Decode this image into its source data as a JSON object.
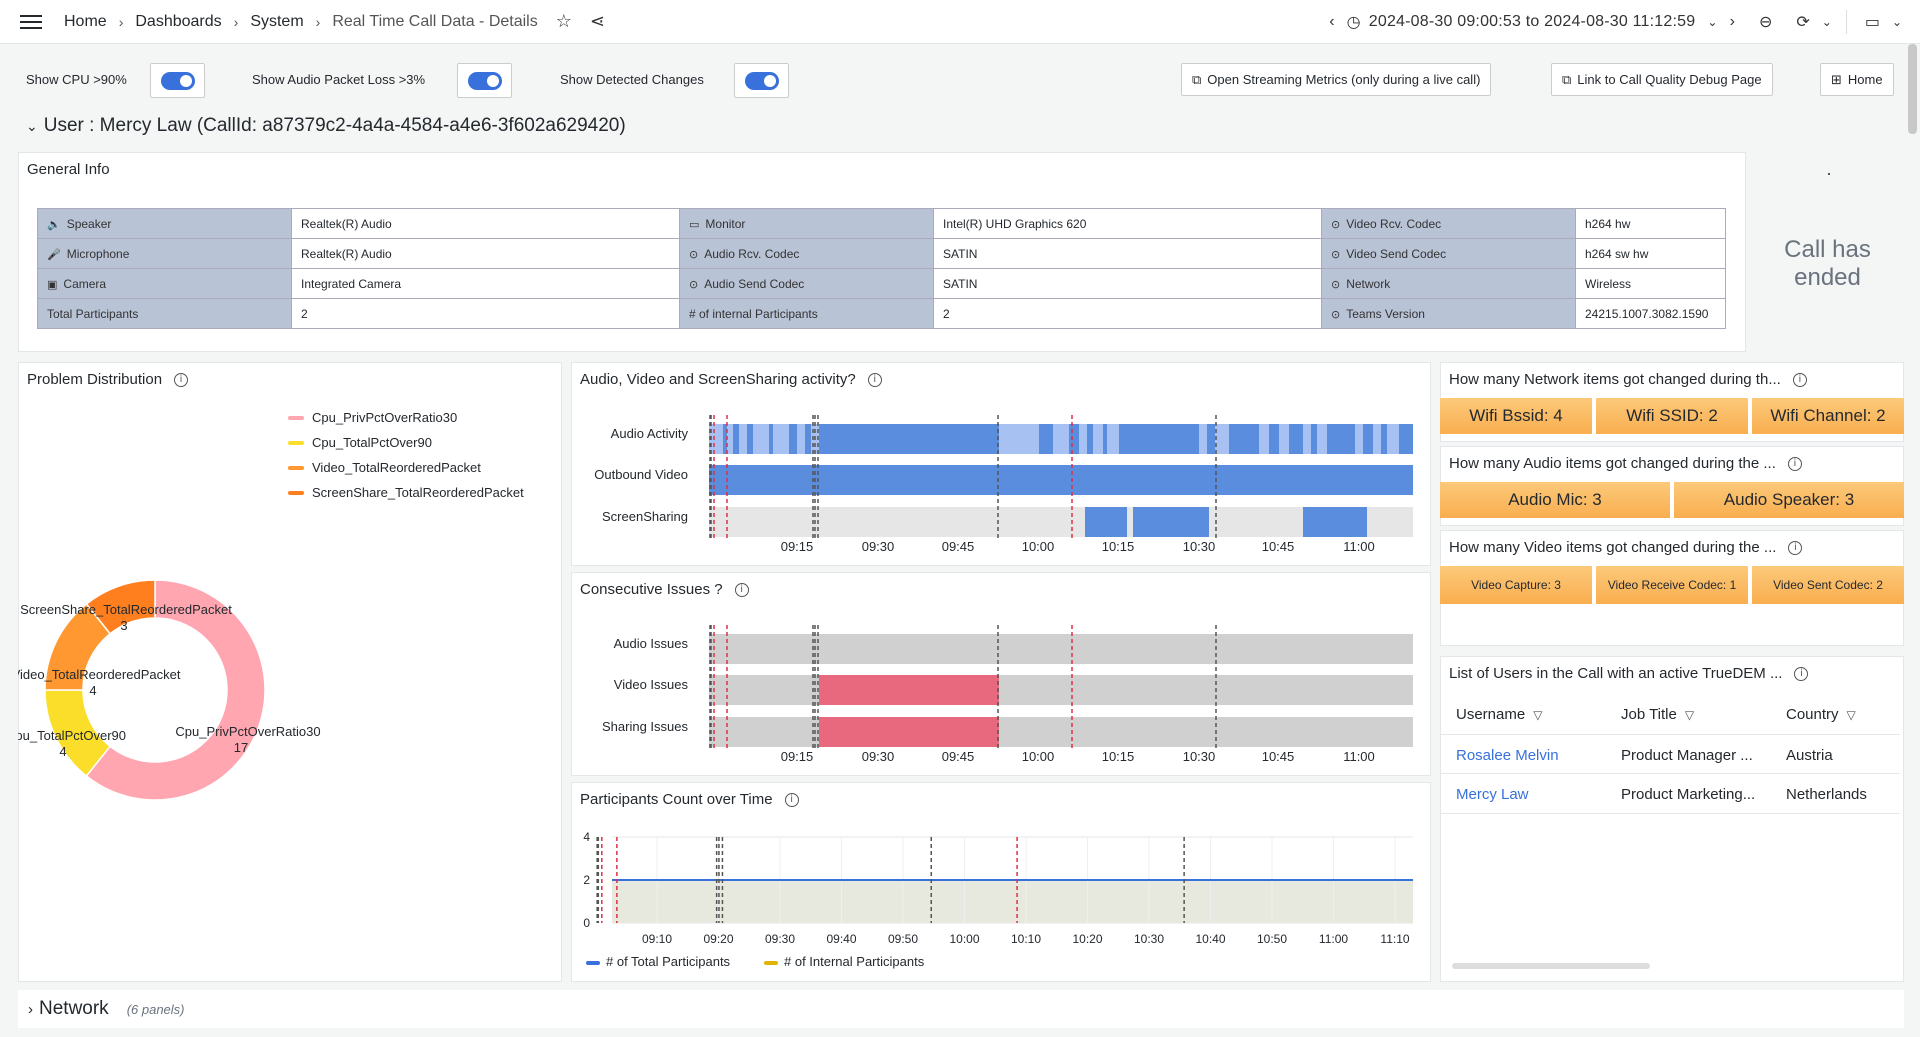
{
  "topbar": {
    "crumbs": [
      "Home",
      "Dashboards",
      "System",
      "Real Time Call Data - Details"
    ],
    "time_range": "2024-08-30 09:00:53 to 2024-08-30 11:12:59"
  },
  "variables": {
    "show_cpu": "Show CPU >90%",
    "show_audio_loss": "Show Audio Packet Loss >3%",
    "show_changes": "Show Detected Changes",
    "open_streaming": "Open Streaming Metrics (only during a live call)",
    "link_debug": "Link to Call Quality Debug Page",
    "home": "Home"
  },
  "user_row": {
    "title": "User : Mercy Law (CallId: a87379c2-4a4a-4584-a4e6-3f602a629420)"
  },
  "general_info": {
    "title": "General Info",
    "rows": [
      [
        {
          "k": "Speaker",
          "icon": "speaker-icon",
          "g": "🔈"
        },
        "Realtek(R) Audio",
        {
          "k": "Monitor",
          "icon": "monitor-icon",
          "g": "▭"
        },
        "Intel(R) UHD Graphics 620",
        {
          "k": "Video Rcv. Codec",
          "icon": "codec-icon",
          "g": "⊙"
        },
        "h264 hw"
      ],
      [
        {
          "k": "Microphone",
          "icon": "microphone-icon",
          "g": "🎤"
        },
        "Realtek(R) Audio",
        {
          "k": "Audio Rcv. Codec",
          "icon": "codec-icon",
          "g": "⊙"
        },
        "SATIN",
        {
          "k": "Video Send Codec",
          "icon": "codec-icon",
          "g": "⊙"
        },
        "h264 sw hw"
      ],
      [
        {
          "k": "Camera",
          "icon": "camera-icon",
          "g": "▣"
        },
        "Integrated Camera",
        {
          "k": "Audio Send Codec",
          "icon": "codec-icon",
          "g": "⊙"
        },
        "SATIN",
        {
          "k": "Network",
          "icon": "network-icon",
          "g": "⊙"
        },
        "Wireless"
      ],
      [
        {
          "k": "Total Participants",
          "icon": "",
          "g": ""
        },
        "2",
        {
          "k": "# of internal Participants",
          "icon": "",
          "g": ""
        },
        "2",
        {
          "k": "Teams Version",
          "icon": "version-icon",
          "g": "⊙"
        },
        "24215.1007.3082.1590"
      ]
    ]
  },
  "call_status": {
    "text": "Call has ended"
  },
  "problem_distribution": {
    "title": "Problem Distribution",
    "chart_data": {
      "type": "pie",
      "categories": [
        "Cpu_PrivPctOverRatio30",
        "Cpu_TotalPctOver90",
        "Video_TotalReorderedPacket",
        "ScreenShare_TotalReorderedPacket"
      ],
      "values": [
        17,
        4,
        4,
        3
      ],
      "colors": [
        "#ffa6b0",
        "#fade2a",
        "#ff9830",
        "#ff7f1e"
      ],
      "slice_labels": [
        "Cpu_PrivPctOverRatio30",
        "Cpu_TotalPctOver90",
        "Video_TotalReorderedPacket",
        "ScreenShare_TotalReorderedPacket"
      ]
    }
  },
  "activity": {
    "title": "Audio, Video and ScreenSharing activity?",
    "rows": [
      "Audio Activity",
      "Outbound Video",
      "ScreenSharing"
    ],
    "ticks": [
      "09:15",
      "09:30",
      "09:45",
      "10:00",
      "10:15",
      "10:30",
      "10:45",
      "11:00"
    ]
  },
  "consecutive": {
    "title": "Consecutive Issues ?",
    "rows": [
      "Audio Issues",
      "Video Issues",
      "Sharing Issues"
    ],
    "ticks": [
      "09:15",
      "09:30",
      "09:45",
      "10:00",
      "10:15",
      "10:30",
      "10:45",
      "11:00"
    ]
  },
  "participants": {
    "title": "Participants Count over Time",
    "chart_data": {
      "type": "line",
      "x_ticks": [
        "09:10",
        "09:20",
        "09:30",
        "09:40",
        "09:50",
        "10:00",
        "10:10",
        "10:20",
        "10:30",
        "10:40",
        "10:50",
        "11:00",
        "11:10"
      ],
      "y_ticks": [
        "0",
        "2",
        "4"
      ],
      "ylim": [
        0,
        4
      ],
      "series": [
        {
          "name": "# of Total Participants",
          "color": "#3871dc",
          "value": 2
        },
        {
          "name": "# of Internal Participants",
          "color": "#e0b400",
          "value": 2
        }
      ]
    }
  },
  "network_changes": {
    "title": "How many Network items got changed during th...",
    "items": [
      "Wifi Bssid: 4",
      "Wifi SSID: 2",
      "Wifi Channel: 2"
    ]
  },
  "audio_changes": {
    "title": "How many Audio items got changed during the ...",
    "items": [
      "Audio Mic: 3",
      "Audio Speaker: 3"
    ]
  },
  "video_changes": {
    "title": "How many Video items got changed during the ...",
    "items": [
      "Video Capture: 3",
      "Video Receive Codec: 1",
      "Video Sent Codec: 2"
    ]
  },
  "users": {
    "title": "List of Users in the Call with an active TrueDEM ...",
    "headers": [
      "Username",
      "Job Title",
      "Country"
    ],
    "rows": [
      [
        "Rosalee Melvin",
        "Product Manager ...",
        "Austria"
      ],
      [
        "Mercy Law",
        "Product Marketing...",
        "Netherlands"
      ]
    ]
  },
  "network_row": {
    "title": "Network",
    "sub": "(6 panels)"
  }
}
